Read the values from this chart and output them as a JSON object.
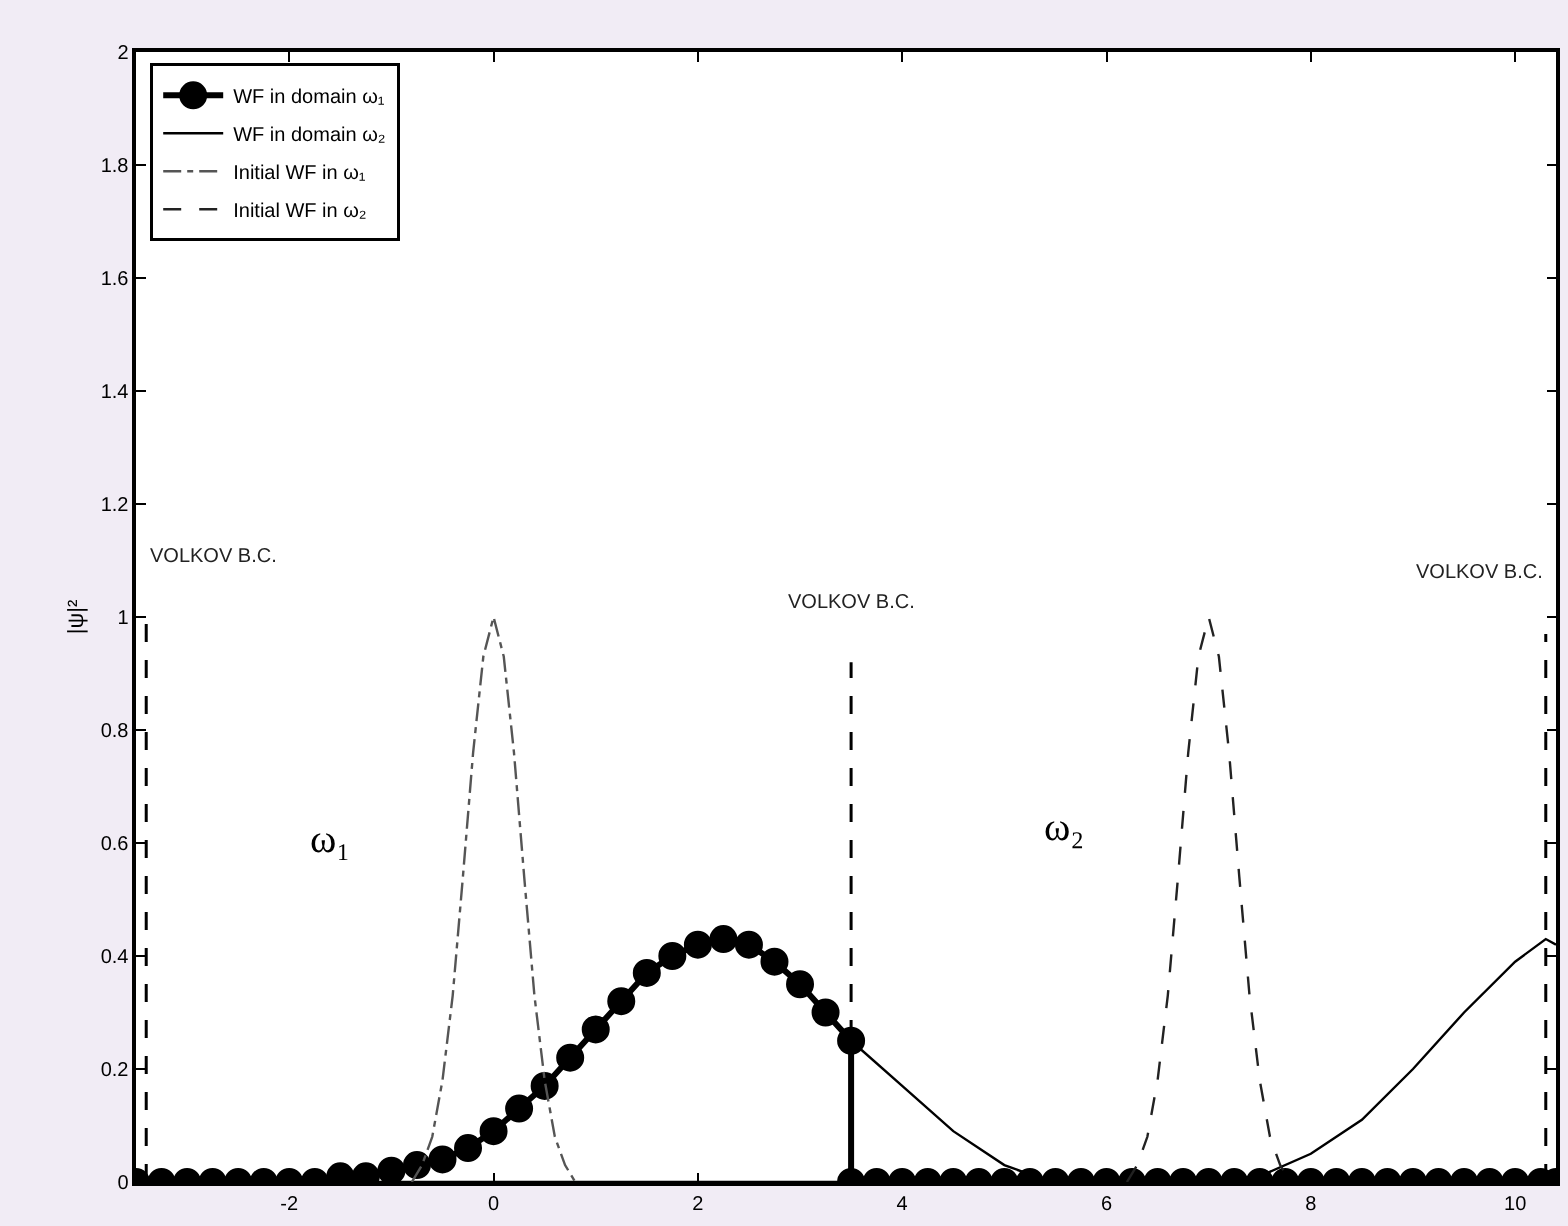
{
  "chart_data": {
    "type": "line",
    "ylabel": "|ψ|²",
    "xlim": [
      -3.5,
      10.4
    ],
    "xticks": [
      -2,
      0,
      2,
      4,
      6,
      8,
      10
    ],
    "ylim": [
      0,
      2
    ],
    "yticks": [
      0,
      0.2,
      0.4,
      0.6,
      0.8,
      1,
      1.2,
      1.4,
      1.6,
      1.8,
      2
    ],
    "grid": false,
    "legend": "top left",
    "series": [
      {
        "name": "WF in domain ω₁",
        "color": "#000000",
        "marker": "circle",
        "line_style": "solid",
        "x": [
          -3.5,
          -3.25,
          -3,
          -2.75,
          -2.5,
          -2.25,
          -2,
          -1.75,
          -1.5,
          -1.25,
          -1,
          -0.75,
          -0.5,
          -0.25,
          0,
          0.25,
          0.5,
          0.75,
          1,
          1.25,
          1.5,
          1.75,
          2,
          2.25,
          2.5,
          2.75,
          3,
          3.25,
          3.5,
          3.5,
          3.75,
          4,
          4.25,
          4.5,
          4.75,
          5,
          5.25,
          5.5,
          5.75,
          6,
          6.25,
          6.5,
          6.75,
          7,
          7.25,
          7.5,
          7.75,
          8,
          8.25,
          8.5,
          8.75,
          9,
          9.25,
          9.5,
          9.75,
          10,
          10.25,
          10.4
        ],
        "values": [
          0,
          0,
          0,
          0,
          0,
          0,
          0,
          0,
          0.01,
          0.01,
          0.02,
          0.03,
          0.04,
          0.06,
          0.09,
          0.13,
          0.17,
          0.22,
          0.27,
          0.32,
          0.37,
          0.4,
          0.42,
          0.43,
          0.42,
          0.39,
          0.35,
          0.3,
          0.25,
          0,
          0,
          0,
          0,
          0,
          0,
          0,
          0,
          0,
          0,
          0,
          0,
          0,
          0,
          0,
          0,
          0,
          0,
          0,
          0,
          0,
          0,
          0,
          0,
          0,
          0,
          0,
          0,
          0
        ]
      },
      {
        "name": "WF in domain ω₂",
        "color": "#000000",
        "marker": "none",
        "line_style": "solid",
        "x": [
          -3.5,
          3.5,
          3.5,
          4,
          4.5,
          5,
          5.3,
          5.5,
          7.2,
          7.5,
          8,
          8.5,
          9,
          9.5,
          10,
          10.3,
          10.4
        ],
        "values": [
          0,
          0,
          0.25,
          0.17,
          0.09,
          0.03,
          0.01,
          0,
          0,
          0.01,
          0.05,
          0.11,
          0.2,
          0.3,
          0.39,
          0.43,
          0.42
        ]
      },
      {
        "name": "Initial WF in ω₁",
        "color": "#555555",
        "marker": "none",
        "line_style": "dashdot",
        "x": [
          -0.8,
          -0.7,
          -0.6,
          -0.5,
          -0.4,
          -0.3,
          -0.2,
          -0.1,
          0,
          0.1,
          0.2,
          0.3,
          0.4,
          0.5,
          0.6,
          0.7,
          0.8
        ],
        "values": [
          0,
          0.03,
          0.08,
          0.18,
          0.33,
          0.54,
          0.76,
          0.93,
          1,
          0.93,
          0.76,
          0.54,
          0.33,
          0.18,
          0.08,
          0.03,
          0
        ]
      },
      {
        "name": "Initial WF in ω₂",
        "color": "#222222",
        "marker": "none",
        "line_style": "dashed",
        "x": [
          6.2,
          6.3,
          6.4,
          6.5,
          6.6,
          6.7,
          6.8,
          6.9,
          7,
          7.1,
          7.2,
          7.3,
          7.4,
          7.5,
          7.6,
          7.7,
          7.8
        ],
        "values": [
          0,
          0.03,
          0.08,
          0.18,
          0.33,
          0.54,
          0.76,
          0.93,
          1,
          0.93,
          0.76,
          0.54,
          0.33,
          0.18,
          0.08,
          0.03,
          0
        ]
      }
    ],
    "ref_lines": [
      {
        "axis": "x",
        "value": -3.4,
        "label": "VOLKOV B.C.",
        "color": "#000000",
        "line_style": "dashed"
      },
      {
        "axis": "x",
        "value": 3.5,
        "label": "VOLKOV B.C.",
        "color": "#000000",
        "line_style": "dashed"
      },
      {
        "axis": "x",
        "value": 10.3,
        "label": "VOLKOV B.C.",
        "color": "#000000",
        "line_style": "dashed"
      }
    ],
    "annotations": [
      "ω₁",
      "ω₂"
    ]
  }
}
